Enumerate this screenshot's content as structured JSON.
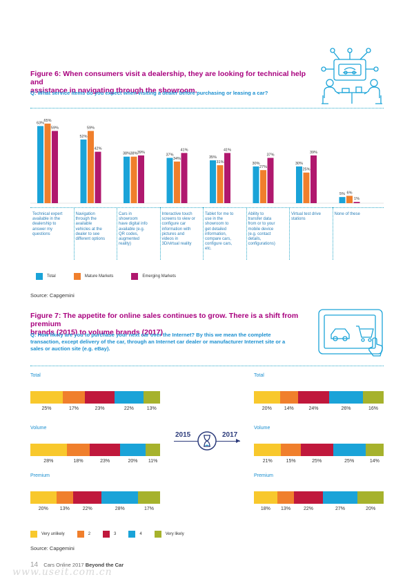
{
  "colors": {
    "total": "#1aa3d8",
    "mature": "#f07f2c",
    "emerging": "#b0186e",
    "very_unlikely": "#f8c82c",
    "two": "#f07f2c",
    "three": "#c0183c",
    "four": "#1aa3d8",
    "very_likely": "#a6b22c"
  },
  "fig6": {
    "title_line1": "Figure 6: When consumers visit a dealership, they are looking for technical help and",
    "title_line2": "assistance in navigating through the showroom.",
    "question": "Q: What service items do you expect when visiting a dealer before purchasing or leasing a car?",
    "source": "Source: Capgemini"
  },
  "fig7": {
    "title_line1": "Figure 7: The appetite for online sales continues to grow. There is a shift from premium",
    "title_line2": "brands (2015) to volume brands (2017)",
    "q_line1": "Q: How likely are you to purchase your next car over the Internet? By this we mean the complete",
    "q_line2": "transaction, except delivery of the car, through an Internet car dealer or manufacturer Internet site or a",
    "q_line3": "sales or auction site (e.g. eBay).",
    "year_left": "2015",
    "year_right": "2017",
    "source": "Source: Capgemini"
  },
  "footer": {
    "page": "14",
    "pub": "Cars Online 2017",
    "title": "Beyond the Car",
    "watermark": "www.useit.com.cn"
  },
  "chart_data": [
    {
      "type": "bar",
      "categories": [
        "Technical expert available in the dealership to answer my questions",
        "Navigation through the available vehicles at the dealer to see different options",
        "Cars in showroom have digital info available (e.g. QR codes, augmented reality)",
        "Interactive touch screens to view or configure car information with pictures and videos in 3D/virtual reality",
        "Tablet for me to use in the showroom to get detailed information, compare cars, configure cars, etc.",
        "Ability to transfer data from or to your mobile device (e.g. contact details, configurations)",
        "Virtual test drive stations",
        "None of these"
      ],
      "category_lines": [
        [
          "Technical expert",
          "available in the",
          "dealership to",
          "answer my",
          "questions"
        ],
        [
          "Navigation",
          "through the",
          "available",
          "vehicles at the",
          "dealer to see",
          "different options"
        ],
        [
          "Cars in",
          "showroom",
          "have digital info",
          "available (e.g.",
          "QR codes,",
          "augmented",
          "reality)"
        ],
        [
          "Interactive touch",
          "screens to view or",
          "configure car",
          "information with",
          "pictures and",
          "videos in",
          "3D/virtual reality"
        ],
        [
          "Tablet for me to",
          "use in the",
          "showroom to",
          "get detailed",
          "information,",
          "compare cars,",
          "configure cars,",
          "etc."
        ],
        [
          "Ability to",
          "transfer data",
          "from or to your",
          "mobile device",
          "(e.g. contact",
          "details,",
          "configurations)"
        ],
        [
          "Virtual test drive",
          "stations"
        ],
        [
          "None of these"
        ]
      ],
      "series": [
        {
          "name": "Total",
          "values": [
            63,
            52,
            38,
            37,
            35,
            30,
            30,
            5
          ],
          "labels": [
            "63%",
            "52%",
            "38%",
            "37%",
            "35%",
            "30%",
            "30%",
            "5%"
          ]
        },
        {
          "name": "Mature Markets",
          "values": [
            65,
            59,
            38,
            34,
            31,
            27,
            25,
            6
          ],
          "labels": [
            "65%",
            "59%",
            "38%",
            "34%",
            "31%",
            "27%",
            "25%",
            "6%"
          ]
        },
        {
          "name": "Emerging  Markets",
          "values": [
            59,
            42,
            39,
            41,
            41,
            37,
            39,
            1
          ],
          "labels": [
            "59%",
            "42%",
            "39%",
            "41%",
            "41%",
            "37%",
            "39%",
            "1%"
          ]
        }
      ],
      "ylim": [
        0,
        70
      ]
    },
    {
      "type": "bar",
      "stacked": true,
      "percent": true,
      "legend": [
        "Very unlikely",
        "2",
        "3",
        "4",
        "Very likely"
      ],
      "groups": [
        {
          "name": "Total",
          "y2015": [
            25,
            17,
            23,
            22,
            13
          ],
          "y2017": [
            20,
            14,
            24,
            26,
            16
          ],
          "labels2015": [
            "25%",
            "17%",
            "23%",
            "22%",
            "13%"
          ],
          "labels2017": [
            "20%",
            "14%",
            "24%",
            "26%",
            "16%"
          ]
        },
        {
          "name": "Volume",
          "y2015": [
            28,
            18,
            23,
            20,
            11
          ],
          "y2017": [
            21,
            15,
            25,
            25,
            14
          ],
          "labels2015": [
            "28%",
            "18%",
            "23%",
            "20%",
            "11%"
          ],
          "labels2017": [
            "21%",
            "15%",
            "25%",
            "25%",
            "14%"
          ]
        },
        {
          "name": "Premium",
          "y2015": [
            20,
            13,
            22,
            28,
            17
          ],
          "y2017": [
            18,
            13,
            22,
            27,
            20
          ],
          "labels2015": [
            "20%",
            "13%",
            "22%",
            "28%",
            "17%"
          ],
          "labels2017": [
            "18%",
            "13%",
            "22%",
            "27%",
            "20%"
          ]
        }
      ]
    }
  ]
}
